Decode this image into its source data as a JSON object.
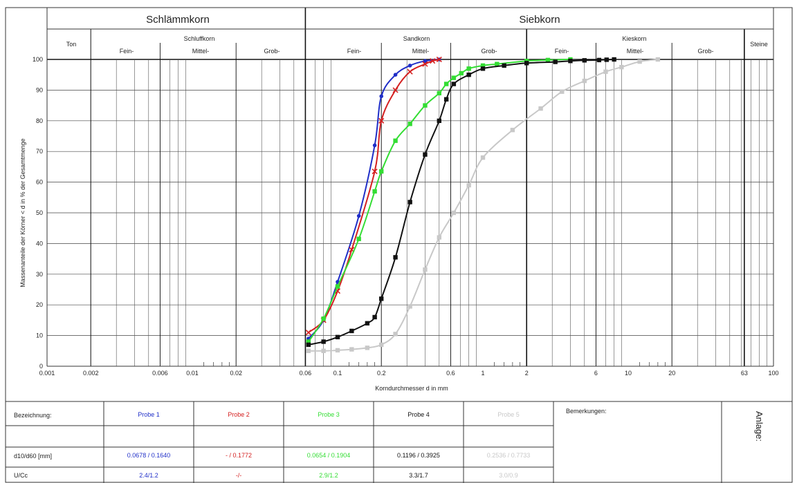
{
  "header": {
    "schlaemmkorn": "Schlämmkorn",
    "siebkorn": "Siebkorn",
    "ton": "Ton",
    "schluffkorn": "Schluffkorn",
    "sandkorn": "Sandkorn",
    "kieskorn": "Kieskorn",
    "steine": "Steine",
    "fein": "Fein-",
    "mittel": "Mittel-",
    "grob": "Grob-"
  },
  "chart_data": {
    "type": "line",
    "xscale": "log",
    "xlim": [
      0.001,
      100
    ],
    "ylim": [
      0,
      100
    ],
    "xlabel": "Korndurchmesser d in mm",
    "ylabel": "Massenanteile der Körner < d in % der Gesamtmenge",
    "xticks": [
      "0.001",
      "0.002",
      "0.006",
      "0.01",
      "0.02",
      "0.06",
      "0.1",
      "0.2",
      "0.6",
      "1",
      "2",
      "6",
      "10",
      "20",
      "63",
      "100"
    ],
    "xtick_values": [
      0.001,
      0.002,
      0.006,
      0.01,
      0.02,
      0.06,
      0.1,
      0.2,
      0.6,
      1,
      2,
      6,
      10,
      20,
      63,
      100
    ],
    "yticks": [
      "0",
      "10",
      "20",
      "30",
      "40",
      "50",
      "60",
      "70",
      "80",
      "90",
      "100"
    ],
    "grid": true,
    "series": [
      {
        "name": "Probe 1",
        "color": "#1f2ec8",
        "marker": "circle",
        "points": [
          [
            0.063,
            9
          ],
          [
            0.08,
            15
          ],
          [
            0.1,
            27.5
          ],
          [
            0.14,
            49
          ],
          [
            0.18,
            72
          ],
          [
            0.2,
            88
          ],
          [
            0.25,
            95
          ],
          [
            0.315,
            98
          ],
          [
            0.4,
            99.5
          ],
          [
            0.5,
            100
          ]
        ]
      },
      {
        "name": "Probe 2",
        "color": "#d42020",
        "marker": "x",
        "points": [
          [
            0.063,
            11
          ],
          [
            0.08,
            15
          ],
          [
            0.1,
            24.5
          ],
          [
            0.125,
            38
          ],
          [
            0.18,
            63.5
          ],
          [
            0.2,
            80
          ],
          [
            0.25,
            90
          ],
          [
            0.315,
            96
          ],
          [
            0.4,
            98.5
          ],
          [
            0.45,
            99.5
          ],
          [
            0.5,
            100
          ]
        ]
      },
      {
        "name": "Probe 3",
        "color": "#33dd33",
        "marker": "square",
        "points": [
          [
            0.063,
            8
          ],
          [
            0.08,
            15.5
          ],
          [
            0.1,
            26
          ],
          [
            0.14,
            41.5
          ],
          [
            0.18,
            57
          ],
          [
            0.2,
            63.5
          ],
          [
            0.25,
            73.5
          ],
          [
            0.315,
            79
          ],
          [
            0.4,
            85
          ],
          [
            0.5,
            89
          ],
          [
            0.56,
            92
          ],
          [
            0.63,
            94
          ],
          [
            0.71,
            95.5
          ],
          [
            0.8,
            97
          ],
          [
            1,
            98
          ],
          [
            1.25,
            98.5
          ],
          [
            2,
            99.5
          ],
          [
            2.8,
            99.8
          ],
          [
            4,
            100
          ]
        ]
      },
      {
        "name": "Probe 4",
        "color": "#111111",
        "marker": "square",
        "points": [
          [
            0.063,
            7
          ],
          [
            0.08,
            8
          ],
          [
            0.1,
            9.5
          ],
          [
            0.125,
            11.5
          ],
          [
            0.16,
            14
          ],
          [
            0.18,
            16
          ],
          [
            0.2,
            22
          ],
          [
            0.25,
            35.5
          ],
          [
            0.315,
            53.5
          ],
          [
            0.4,
            69
          ],
          [
            0.5,
            80
          ],
          [
            0.56,
            87
          ],
          [
            0.63,
            92
          ],
          [
            0.8,
            95
          ],
          [
            1,
            97
          ],
          [
            1.4,
            98
          ],
          [
            2,
            98.8
          ],
          [
            3.15,
            99.2
          ],
          [
            4,
            99.5
          ],
          [
            5,
            99.7
          ],
          [
            6.3,
            99.8
          ],
          [
            7.1,
            99.9
          ],
          [
            8,
            100
          ]
        ]
      },
      {
        "name": "Probe 5",
        "color": "#c8c8c8",
        "marker": "square",
        "points": [
          [
            0.063,
            5
          ],
          [
            0.08,
            5
          ],
          [
            0.1,
            5.2
          ],
          [
            0.125,
            5.5
          ],
          [
            0.16,
            6
          ],
          [
            0.2,
            7
          ],
          [
            0.25,
            10.5
          ],
          [
            0.315,
            19.5
          ],
          [
            0.4,
            31.5
          ],
          [
            0.5,
            42
          ],
          [
            0.63,
            50
          ],
          [
            0.8,
            59
          ],
          [
            1,
            68
          ],
          [
            1.6,
            77
          ],
          [
            2.5,
            84
          ],
          [
            3.5,
            89.5
          ],
          [
            5,
            93
          ],
          [
            7,
            96
          ],
          [
            9,
            97.5
          ],
          [
            12,
            99.3
          ],
          [
            16,
            100
          ]
        ]
      }
    ]
  },
  "table": {
    "bezeichnung_label": "Bezeichnung:",
    "d10d60_label": "d10/d60 [mm]",
    "ucc_label": "U/Cc",
    "bemerkungen_label": "Bemerkungen:",
    "anlage_label": "Anlage:",
    "probes": [
      {
        "name": "Probe 1",
        "color": "#1f2ec8",
        "d10d60": "0.0678 / 0.1640",
        "ucc": "2.4/1.2"
      },
      {
        "name": "Probe 2",
        "color": "#d42020",
        "d10d60": "- / 0.1772",
        "ucc": "-/-"
      },
      {
        "name": "Probe 3",
        "color": "#33dd33",
        "d10d60": "0.0654 / 0.1904",
        "ucc": "2.9/1.2"
      },
      {
        "name": "Probe 4",
        "color": "#111111",
        "d10d60": "0.1196 / 0.3925",
        "ucc": "3.3/1.7"
      },
      {
        "name": "Probe 5",
        "color": "#c8c8c8",
        "d10d60": "0.2536 / 0.7733",
        "ucc": "3.0/0.9"
      }
    ]
  }
}
